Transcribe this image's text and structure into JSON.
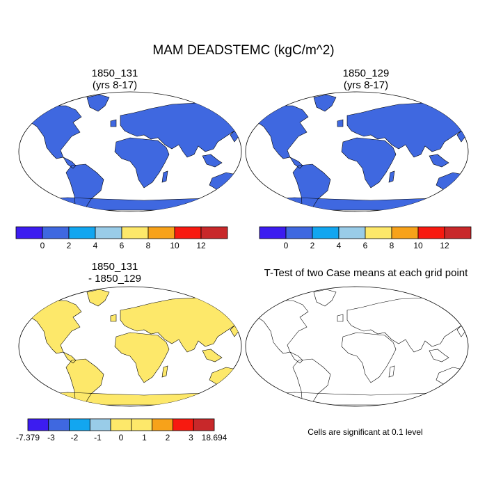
{
  "title": "MAM DEADSTEMC (kgC/m^2)",
  "panels": [
    {
      "id": "p1",
      "title_line1": "1850_131",
      "title_line2": "(yrs 8-17)",
      "field": "case_a"
    },
    {
      "id": "p2",
      "title_line1": "1850_129",
      "title_line2": "(yrs 8-17)",
      "field": "case_b"
    },
    {
      "id": "p3",
      "title_line1": "1850_131",
      "title_line2": "- 1850_129",
      "field": "difference"
    },
    {
      "id": "p4",
      "title_line1": "T-Test of two Case means at each grid point",
      "title_line2": "",
      "field": "ttest"
    }
  ],
  "colorbar_top": {
    "colors": [
      "#3c1cf0",
      "#3f68e0",
      "#12a6f0",
      "#99cce8",
      "#fde86a",
      "#f7a21a",
      "#f71a10",
      "#c8282a"
    ],
    "labels": [
      "0",
      "2",
      "4",
      "6",
      "8",
      "10",
      "12"
    ]
  },
  "colorbar_diff": {
    "colors": [
      "#3c1cf0",
      "#3f68e0",
      "#12a6f0",
      "#99cce8",
      "#fde86a",
      "#fde86a",
      "#f7a21a",
      "#f71a10",
      "#c8282a"
    ],
    "labels": [
      "-7.379",
      "-3",
      "-2",
      "-1",
      "0",
      "1",
      "2",
      "3",
      "18.694"
    ]
  },
  "colors": {
    "ocean": "#ffffff",
    "land_low": "#3f68e0",
    "diff_base": "#fde86a",
    "tropics_high": "#e0282a",
    "boreal_mid": "#fde86a",
    "significant": "#f40a0a",
    "coast": "#000000"
  },
  "significance_note": "Cells are significant at 0.1 level"
}
